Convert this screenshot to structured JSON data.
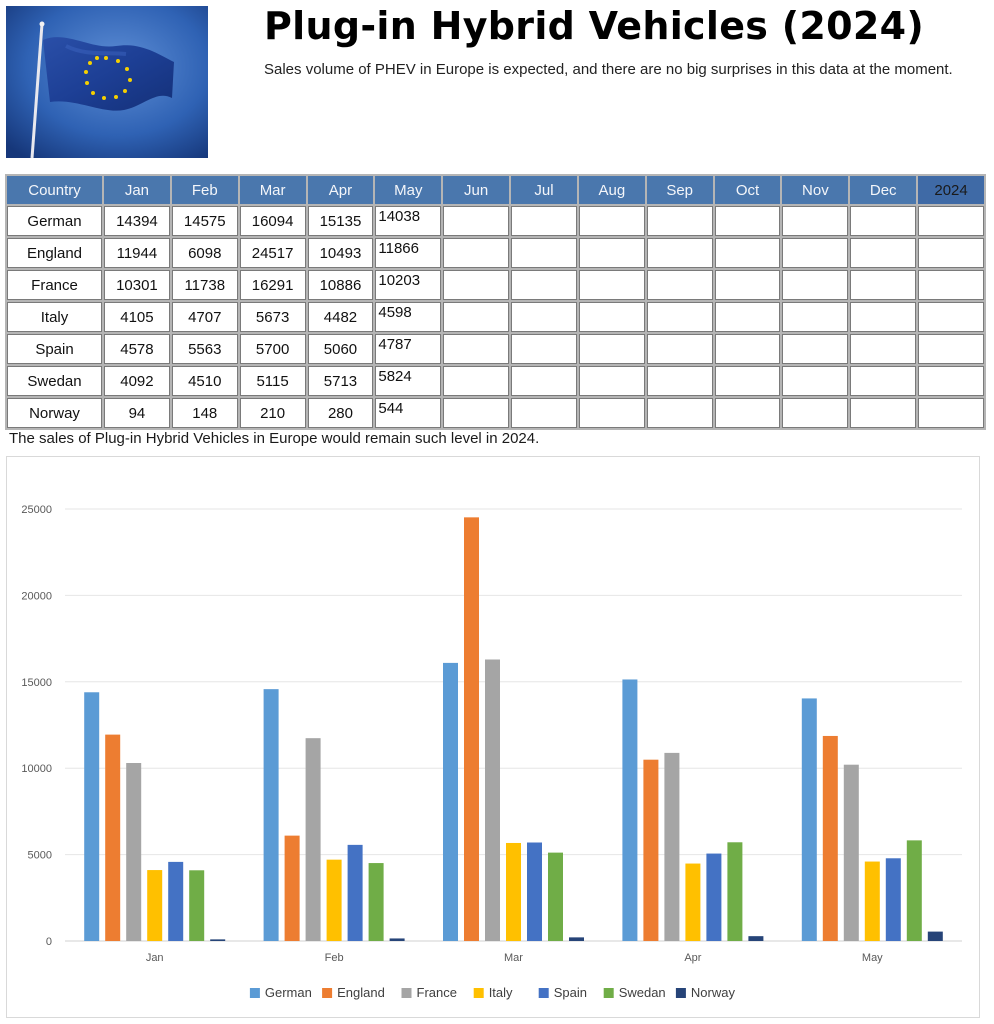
{
  "header": {
    "title": "Plug-in Hybrid Vehicles (2024)",
    "subtitle": "Sales volume of PHEV in Europe is expected, and there are no big surprises in this data at the moment."
  },
  "table": {
    "headers": [
      "Country",
      "Jan",
      "Feb",
      "Mar",
      "Apr",
      "May",
      "Jun",
      "Jul",
      "Aug",
      "Sep",
      "Oct",
      "Nov",
      "Dec",
      "2024"
    ],
    "rows": [
      {
        "country": "German",
        "values": [
          "14394",
          "14575",
          "16094",
          "15135",
          "14038",
          "",
          "",
          "",
          "",
          "",
          "",
          "",
          ""
        ]
      },
      {
        "country": "England",
        "values": [
          "11944",
          "6098",
          "24517",
          "10493",
          "11866",
          "",
          "",
          "",
          "",
          "",
          "",
          "",
          ""
        ]
      },
      {
        "country": "France",
        "values": [
          "10301",
          "11738",
          "16291",
          "10886",
          "10203",
          "",
          "",
          "",
          "",
          "",
          "",
          "",
          ""
        ]
      },
      {
        "country": "Italy",
        "values": [
          "4105",
          "4707",
          "5673",
          "4482",
          "4598",
          "",
          "",
          "",
          "",
          "",
          "",
          "",
          ""
        ]
      },
      {
        "country": "Spain",
        "values": [
          "4578",
          "5563",
          "5700",
          "5060",
          "4787",
          "",
          "",
          "",
          "",
          "",
          "",
          "",
          ""
        ]
      },
      {
        "country": "Swedan",
        "values": [
          "4092",
          "4510",
          "5115",
          "5713",
          "5824",
          "",
          "",
          "",
          "",
          "",
          "",
          "",
          ""
        ]
      },
      {
        "country": "Norway",
        "values": [
          "94",
          "148",
          "210",
          "280",
          "544",
          "",
          "",
          "",
          "",
          "",
          "",
          "",
          ""
        ]
      }
    ],
    "note": "The sales of Plug-in Hybrid Vehicles in Europe would remain such level in 2024."
  },
  "colors": {
    "header_bg": "#4a77ad",
    "German": "#5b9bd5",
    "England": "#ed7d31",
    "France": "#a5a5a5",
    "Italy": "#ffc000",
    "Spain": "#4472c4",
    "Swedan": "#70ad47",
    "Norway": "#264478"
  },
  "chart_data": {
    "type": "bar",
    "categories": [
      "Jan",
      "Feb",
      "Mar",
      "Apr",
      "May"
    ],
    "series": [
      {
        "name": "German",
        "color": "#5b9bd5",
        "values": [
          14394,
          14575,
          16094,
          15135,
          14038
        ]
      },
      {
        "name": "England",
        "color": "#ed7d31",
        "values": [
          11944,
          6098,
          24517,
          10493,
          11866
        ]
      },
      {
        "name": "France",
        "color": "#a5a5a5",
        "values": [
          10301,
          11738,
          16291,
          10886,
          10203
        ]
      },
      {
        "name": "Italy",
        "color": "#ffc000",
        "values": [
          4105,
          4707,
          5673,
          4482,
          4598
        ]
      },
      {
        "name": "Spain",
        "color": "#4472c4",
        "values": [
          4578,
          5563,
          5700,
          5060,
          4787
        ]
      },
      {
        "name": "Swedan",
        "color": "#70ad47",
        "values": [
          4092,
          4510,
          5115,
          5713,
          5824
        ]
      },
      {
        "name": "Norway",
        "color": "#264478",
        "values": [
          94,
          148,
          210,
          280,
          544
        ]
      }
    ],
    "ylim": [
      0,
      25000
    ],
    "yticks": [
      0,
      5000,
      10000,
      15000,
      20000,
      25000
    ],
    "grid": true,
    "legend": "bottom"
  }
}
